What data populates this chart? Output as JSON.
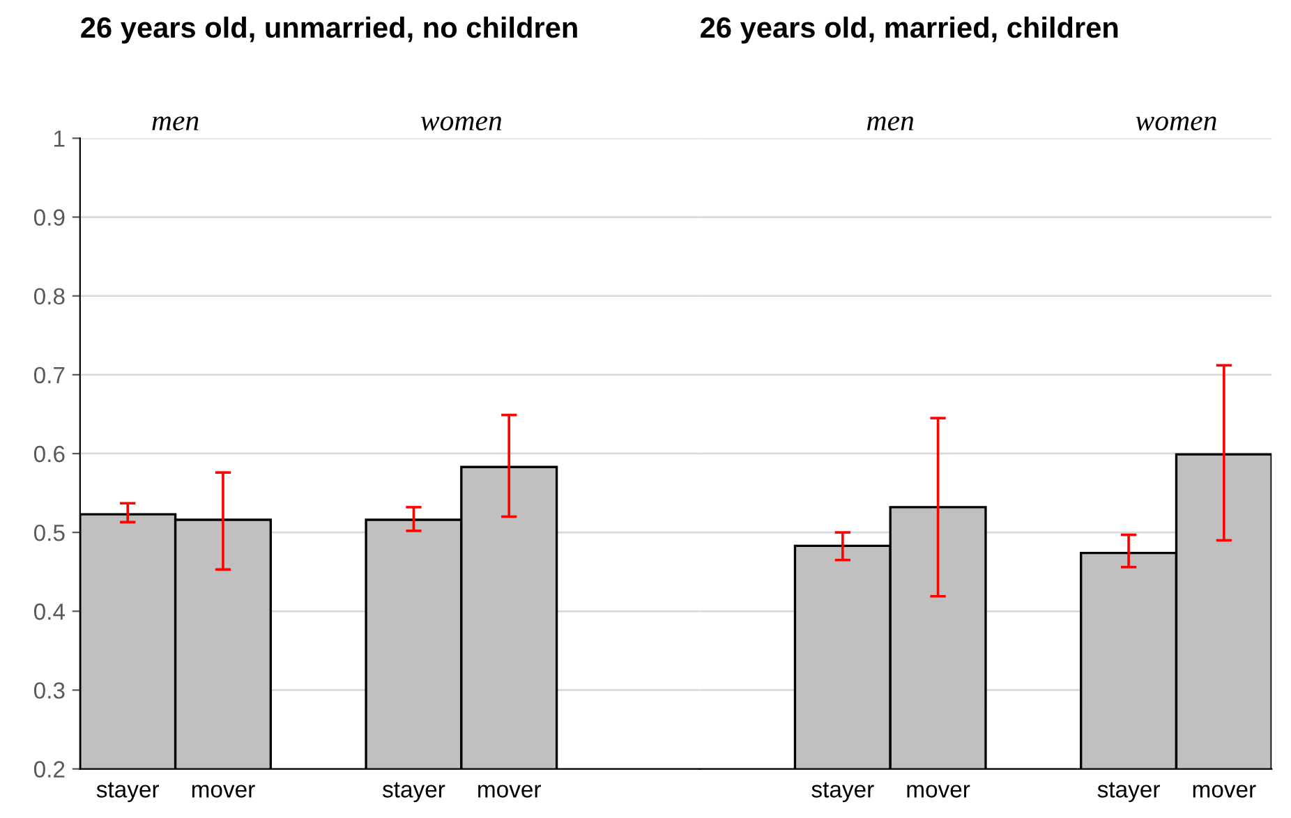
{
  "chart_data": [
    {
      "type": "bar",
      "title": "26 years old, unmarried, no children",
      "categories": [
        "stayer",
        "mover",
        null,
        "stayer",
        "mover"
      ],
      "series": [
        {
          "color": "#c0c0c0",
          "values": [
            0.523,
            0.516,
            null,
            0.516,
            0.583
          ],
          "errors": [
            [
              0.513,
              0.537
            ],
            [
              0.453,
              0.576
            ],
            null,
            [
              0.502,
              0.532
            ],
            [
              0.52,
              0.649
            ]
          ]
        }
      ],
      "annotations": [
        "men",
        "women"
      ],
      "ylim": [
        0.2,
        1
      ],
      "yticks": [
        0.2,
        0.3,
        0.4,
        0.5,
        0.6,
        0.7,
        0.8,
        0.9,
        1
      ],
      "grid": "y",
      "legend": false
    },
    {
      "type": "bar",
      "title": "26 years old, married, children",
      "categories": [
        "stayer",
        "mover",
        null,
        "stayer",
        "mover"
      ],
      "series": [
        {
          "color": "#c0c0c0",
          "values": [
            0.483,
            0.532,
            null,
            0.474,
            0.599
          ],
          "errors": [
            [
              0.465,
              0.5
            ],
            [
              0.419,
              0.645
            ],
            null,
            [
              0.456,
              0.497
            ],
            [
              0.49,
              0.712
            ]
          ]
        }
      ],
      "annotations": [
        "men",
        "women"
      ],
      "ylim": [
        0.2,
        1
      ],
      "yticks": [
        0.2,
        0.3,
        0.4,
        0.5,
        0.6,
        0.7,
        0.8,
        0.9,
        1
      ],
      "grid": "y",
      "legend": false,
      "tick_labels": "x"
    }
  ]
}
